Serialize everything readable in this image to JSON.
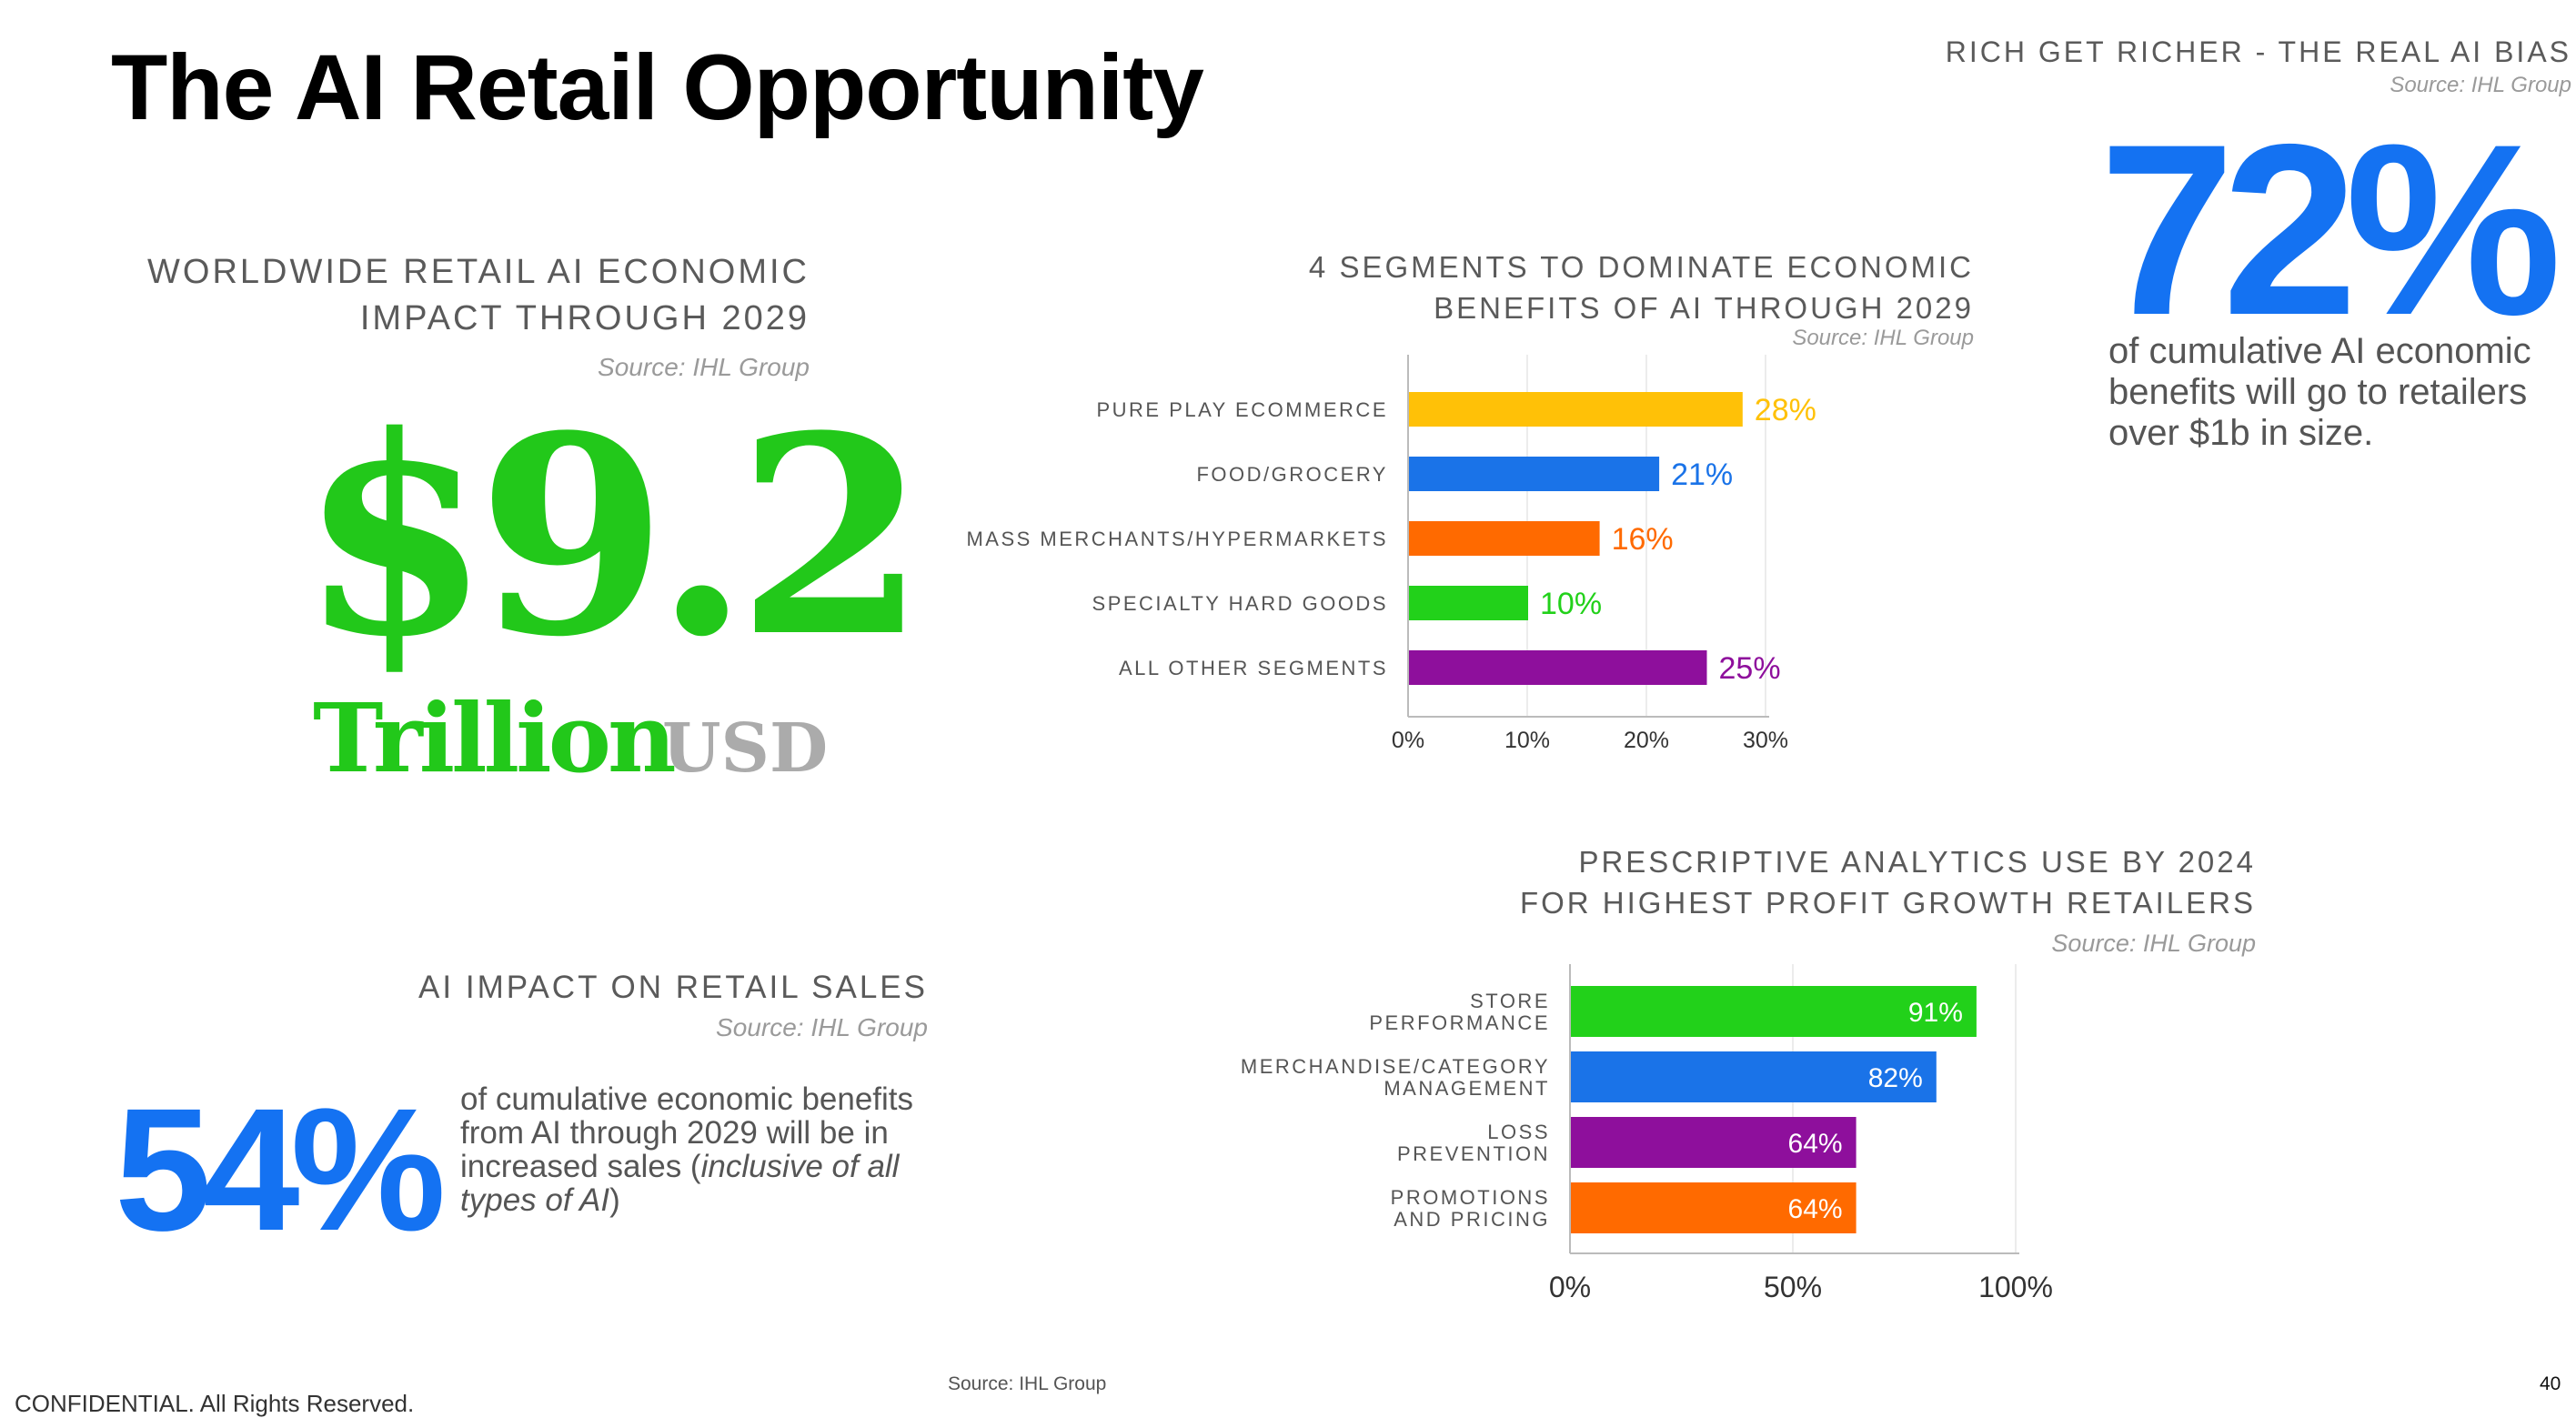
{
  "title": "The AI Retail Opportunity",
  "rich": {
    "heading": "RICH GET RICHER - THE REAL AI BIAS",
    "source": "Source: IHL Group",
    "stat": "72%",
    "text": "of cumulative AI economic benefits will go to retailers over $1b in size."
  },
  "worldwide": {
    "heading_line1": "WORLDWIDE RETAIL AI ECONOMIC",
    "heading_line2": "IMPACT THROUGH 2029",
    "source": "Source: IHL Group",
    "value": "$9.2",
    "unit": "Trillion",
    "currency": "USD"
  },
  "ai_impact": {
    "heading": "AI IMPACT ON RETAIL SALES",
    "source": "Source: IHL Group",
    "stat": "54%",
    "text_part1": "of cumulative economic benefits from AI through 2029 will be in increased sales (",
    "text_italic": "inclusive of all types of AI",
    "text_part2": ")"
  },
  "segments": {
    "heading_line1": "4 SEGMENTS TO DOMINATE ECONOMIC",
    "heading_line2": "BENEFITS OF AI THROUGH 2029",
    "source": "Source: IHL Group"
  },
  "analytics": {
    "heading_line1": "PRESCRIPTIVE ANALYTICS USE BY 2024",
    "heading_line2": "FOR HIGHEST PROFIT GROWTH RETAILERS",
    "source": "Source: IHL Group"
  },
  "chart_data": [
    {
      "type": "bar",
      "orientation": "horizontal",
      "categories": [
        "PURE PLAY ECOMMERCE",
        "FOOD/GROCERY",
        "MASS MERCHANTS/HYPERMARKETS",
        "SPECIALTY HARD GOODS",
        "ALL OTHER SEGMENTS"
      ],
      "values": [
        28,
        21,
        16,
        10,
        25
      ],
      "value_labels": [
        "28%",
        "21%",
        "16%",
        "10%",
        "25%"
      ],
      "colors": [
        "#ffc107",
        "#1a73e8",
        "#ff6a00",
        "#22d11a",
        "#8e0f9c"
      ],
      "ticks": [
        "0%",
        "10%",
        "20%",
        "30%"
      ],
      "xlim": [
        0,
        30
      ],
      "grid": true
    },
    {
      "type": "bar",
      "orientation": "horizontal",
      "categories": [
        [
          "STORE",
          "PERFORMANCE"
        ],
        [
          "MERCHANDISE/CATEGORY",
          "MANAGEMENT"
        ],
        [
          "LOSS",
          "PREVENTION"
        ],
        [
          "PROMOTIONS",
          "AND PRICING"
        ]
      ],
      "values": [
        91,
        82,
        64,
        64
      ],
      "value_labels": [
        "91%",
        "82%",
        "64%",
        "64%"
      ],
      "colors": [
        "#22d11a",
        "#1a73e8",
        "#8e0f9c",
        "#ff6a00"
      ],
      "ticks": [
        "0%",
        "50%",
        "100%"
      ],
      "xlim": [
        0,
        100
      ],
      "grid": true
    }
  ],
  "footer": {
    "confidential": "CONFIDENTIAL. All Rights Reserved.",
    "source": "Source: IHL Group",
    "page": "40"
  }
}
